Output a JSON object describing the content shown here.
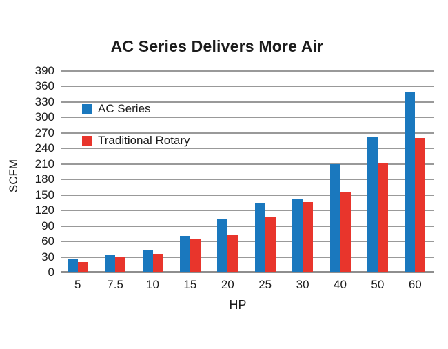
{
  "chart_data": {
    "type": "bar",
    "title": "AC Series Delivers More Air",
    "xlabel": "HP",
    "ylabel": "SCFM",
    "categories": [
      "5",
      "7.5",
      "10",
      "15",
      "20",
      "25",
      "30",
      "40",
      "50",
      "60"
    ],
    "series": [
      {
        "name": "AC Series",
        "color": "#1a78be",
        "values": [
          25,
          35,
          44,
          71,
          104,
          135,
          142,
          210,
          263,
          350
        ]
      },
      {
        "name": "Traditional Rotary",
        "color": "#e8352c",
        "values": [
          20,
          29,
          36,
          65,
          72,
          108,
          136,
          155,
          211,
          260
        ]
      }
    ],
    "ylim": [
      0,
      390
    ],
    "ytick_step": 30,
    "ytick_labels": [
      "0",
      "30",
      "60",
      "90",
      "120",
      "150",
      "180",
      "210",
      "240",
      "270",
      "300",
      "330",
      "360",
      "390"
    ],
    "grid": true,
    "gridline_color": "#999999",
    "baseline_color": "#8e8e8e",
    "legend_position": "inside top-left",
    "text_color": "#1c1c1c"
  }
}
